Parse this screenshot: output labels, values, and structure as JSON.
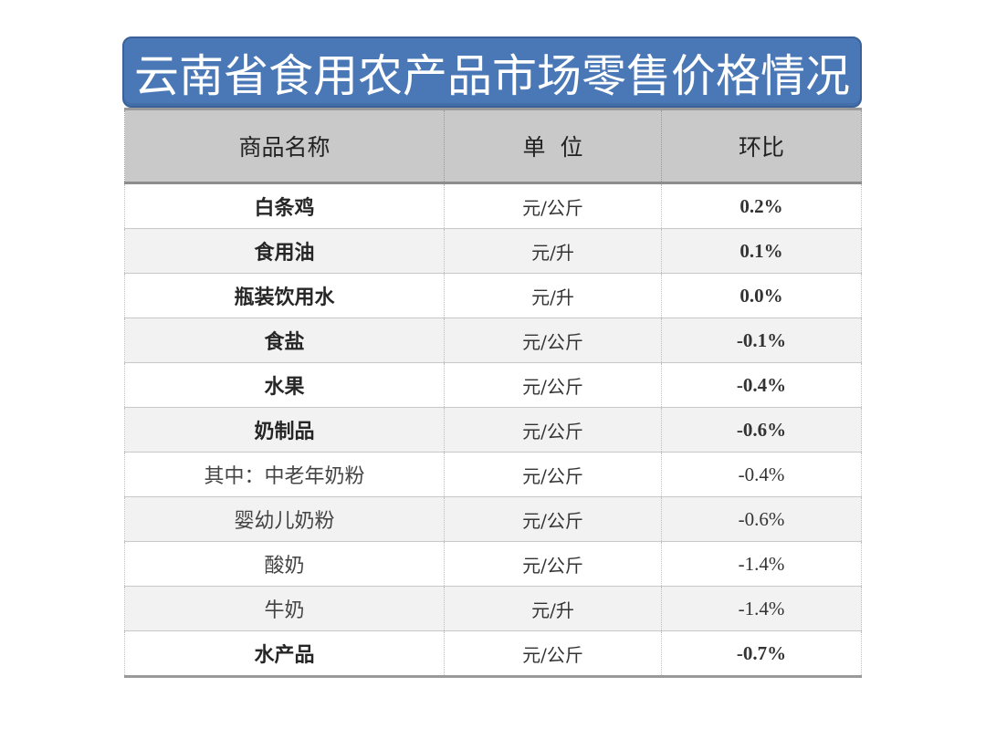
{
  "title": "云南省食用农产品市场零售价格情况",
  "table": {
    "headers": [
      "商品名称",
      "单  位",
      "环比"
    ],
    "rows": [
      {
        "name": "白条鸡",
        "unit": "元/公斤",
        "change": "0.2%",
        "bold": true
      },
      {
        "name": "食用油",
        "unit": "元/升",
        "change": "0.1%",
        "bold": true
      },
      {
        "name": "瓶装饮用水",
        "unit": "元/升",
        "change": "0.0%",
        "bold": true
      },
      {
        "name": "食盐",
        "unit": "元/公斤",
        "change": "-0.1%",
        "bold": true
      },
      {
        "name": "水果",
        "unit": "元/公斤",
        "change": "-0.4%",
        "bold": true
      },
      {
        "name": "奶制品",
        "unit": "元/公斤",
        "change": "-0.6%",
        "bold": true
      },
      {
        "name": "其中：中老年奶粉",
        "unit": "元/公斤",
        "change": "-0.4%",
        "bold": false
      },
      {
        "name": "婴幼儿奶粉",
        "unit": "元/公斤",
        "change": "-0.6%",
        "bold": false
      },
      {
        "name": "酸奶",
        "unit": "元/公斤",
        "change": "-1.4%",
        "bold": false
      },
      {
        "name": "牛奶",
        "unit": "元/升",
        "change": "-1.4%",
        "bold": false
      },
      {
        "name": "水产品",
        "unit": "元/公斤",
        "change": "-0.7%",
        "bold": true
      }
    ]
  },
  "colors": {
    "banner": "#4a78b6",
    "header_bg": "#c9c9c9",
    "alt_row": "#f2f2f2"
  }
}
